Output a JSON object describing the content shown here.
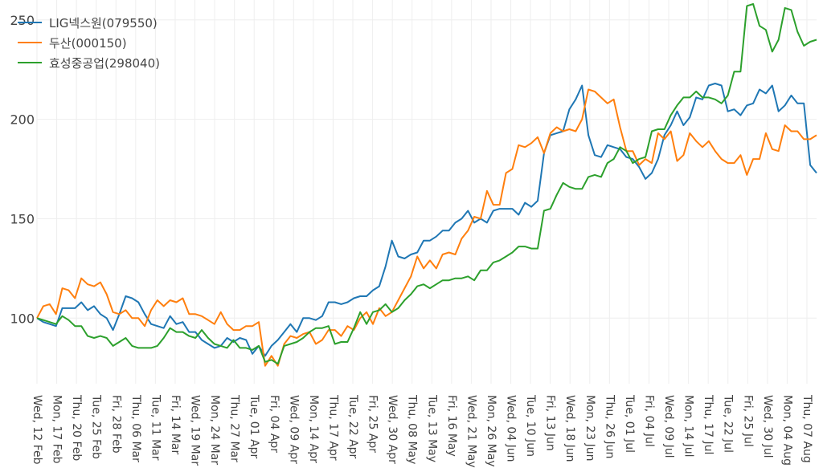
{
  "chart_data": {
    "type": "line",
    "title": "",
    "xlabel": "",
    "ylabel": "",
    "ylim": [
      67,
      260
    ],
    "y_ticks": [
      "100",
      "150",
      "200",
      "250"
    ],
    "grid": true,
    "legend_position": "top-left",
    "x_tick_labels": [
      "Wed, 12 Feb",
      "Mon, 17 Feb",
      "Thu, 20 Feb",
      "Tue, 25 Feb",
      "Fri, 28 Feb",
      "Thu, 06 Mar",
      "Tue, 11 Mar",
      "Fri, 14 Mar",
      "Wed, 19 Mar",
      "Mon, 24 Mar",
      "Thu, 27 Mar",
      "Tue, 01 Apr",
      "Fri, 04 Apr",
      "Wed, 09 Apr",
      "Mon, 14 Apr",
      "Thu, 17 Apr",
      "Tue, 22 Apr",
      "Fri, 25 Apr",
      "Wed, 30 Apr",
      "Thu, 08 May",
      "Tue, 13 May",
      "Fri, 16 May",
      "Wed, 21 May",
      "Mon, 26 May",
      "Wed, 04 Jun",
      "Tue, 10 Jun",
      "Fri, 13 Jun",
      "Wed, 18 Jun",
      "Mon, 23 Jun",
      "Thu, 26 Jun",
      "Tue, 01 Jul",
      "Fri, 04 Jul",
      "Wed, 09 Jul",
      "Mon, 14 Jul",
      "Thu, 17 Jul",
      "Tue, 22 Jul",
      "Fri, 25 Jul",
      "Wed, 30 Jul",
      "Mon, 04 Aug",
      "Thu, 07 Aug"
    ],
    "series": [
      {
        "name": "LIG넥스원(079550)",
        "color": "#1f77b4",
        "values": [
          100,
          98,
          97,
          96,
          105,
          105,
          105,
          108,
          104,
          106,
          102,
          100,
          94,
          102,
          111,
          110,
          108,
          102,
          97,
          96,
          95,
          101,
          97,
          98,
          93,
          93,
          89,
          87,
          85,
          86,
          90,
          88,
          90,
          89,
          82,
          86,
          81,
          86,
          89,
          93,
          97,
          93,
          100,
          100,
          99,
          101,
          108,
          108,
          107,
          108,
          110,
          111,
          111,
          114,
          116,
          126,
          139,
          131,
          130,
          132,
          133,
          139,
          139,
          141,
          144,
          144,
          148,
          150,
          154,
          148,
          150,
          148,
          154,
          155,
          155,
          155,
          152,
          158,
          156,
          159,
          183,
          192,
          193,
          194,
          205,
          210,
          217,
          192,
          182,
          181,
          187,
          186,
          185,
          181,
          180,
          176,
          170,
          173,
          180,
          192,
          197,
          204,
          197,
          201,
          211,
          210,
          217,
          218,
          217,
          204,
          205,
          202,
          207,
          208,
          215,
          213,
          217,
          204,
          207,
          212,
          208,
          208,
          177,
          173
        ]
      },
      {
        "name": "두산(000150)",
        "color": "#ff7f0e",
        "values": [
          100,
          106,
          107,
          102,
          115,
          114,
          110,
          120,
          117,
          116,
          118,
          112,
          103,
          102,
          104,
          100,
          100,
          96,
          104,
          109,
          106,
          109,
          108,
          110,
          102,
          102,
          101,
          99,
          97,
          103,
          97,
          94,
          94,
          96,
          96,
          98,
          76,
          81,
          76,
          87,
          91,
          90,
          92,
          93,
          87,
          89,
          94,
          94,
          91,
          96,
          94,
          100,
          103,
          97,
          105,
          101,
          103,
          109,
          115,
          121,
          131,
          125,
          129,
          125,
          132,
          133,
          132,
          140,
          144,
          151,
          150,
          164,
          157,
          157,
          173,
          175,
          187,
          186,
          188,
          191,
          183,
          193,
          196,
          194,
          195,
          194,
          200,
          215,
          214,
          211,
          208,
          210,
          196,
          184,
          184,
          177,
          180,
          178,
          193,
          190,
          194,
          179,
          182,
          193,
          189,
          186,
          189,
          184,
          180,
          178,
          178,
          182,
          172,
          180,
          180,
          193,
          185,
          184,
          197,
          194,
          194,
          190,
          190,
          192
        ]
      },
      {
        "name": "효성중공업(298040)",
        "color": "#2ca02c",
        "values": [
          100,
          99,
          98,
          97,
          101,
          99,
          96,
          96,
          91,
          90,
          91,
          90,
          86,
          88,
          90,
          86,
          85,
          85,
          85,
          86,
          90,
          95,
          93,
          93,
          91,
          90,
          94,
          90,
          87,
          86,
          85,
          89,
          85,
          85,
          84,
          86,
          78,
          79,
          77,
          86,
          87,
          88,
          90,
          93,
          95,
          95,
          96,
          87,
          88,
          88,
          95,
          103,
          97,
          103,
          104,
          107,
          103,
          105,
          109,
          112,
          116,
          117,
          115,
          117,
          119,
          119,
          120,
          120,
          121,
          119,
          124,
          124,
          128,
          129,
          131,
          133,
          136,
          136,
          135,
          135,
          154,
          155,
          162,
          168,
          166,
          165,
          165,
          171,
          172,
          171,
          178,
          180,
          186,
          184,
          178,
          180,
          181,
          194,
          195,
          195,
          202,
          207,
          211,
          211,
          214,
          211,
          211,
          210,
          208,
          212,
          224,
          224,
          257,
          258,
          247,
          245,
          234,
          240,
          256,
          255,
          244,
          237,
          239,
          240
        ]
      }
    ]
  }
}
